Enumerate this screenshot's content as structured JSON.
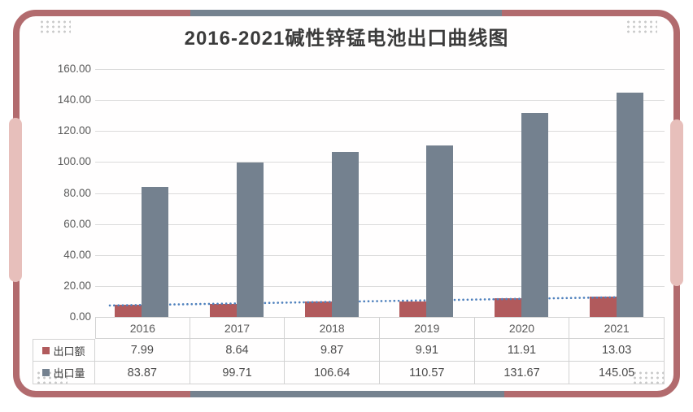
{
  "title": "2016-2021碱性锌锰电池出口曲线图",
  "chart_data": {
    "type": "bar",
    "categories": [
      "2016",
      "2017",
      "2018",
      "2019",
      "2020",
      "2021"
    ],
    "series": [
      {
        "name": "出口额",
        "color": "#b15a5c",
        "values": [
          7.99,
          8.64,
          9.87,
          9.91,
          11.91,
          13.03
        ]
      },
      {
        "name": "出口量",
        "color": "#74818f",
        "values": [
          83.87,
          99.71,
          106.64,
          110.57,
          131.67,
          145.05
        ]
      }
    ],
    "title": "2016-2021碱性锌锰电池出口曲线图",
    "xlabel": "",
    "ylabel": "",
    "ylim": [
      0,
      160
    ],
    "ytick_step": 20,
    "ytick_labels": [
      "160.00",
      "140.00",
      "120.00",
      "100.00",
      "80.00",
      "60.00",
      "40.00",
      "20.00",
      "0.00"
    ],
    "grid": true,
    "legend_position": "data-table-left",
    "trendline": {
      "of_series": "出口额",
      "style": "dotted",
      "color": "#4f81bd"
    }
  },
  "table": {
    "year_row": [
      "2016",
      "2017",
      "2018",
      "2019",
      "2020",
      "2021"
    ],
    "rows": [
      {
        "label": "出口额",
        "key_color": "#b15a5c",
        "values": [
          "7.99",
          "8.64",
          "9.87",
          "9.91",
          "11.91",
          "13.03"
        ]
      },
      {
        "label": "出口量",
        "key_color": "#74818f",
        "values": [
          "83.87",
          "99.71",
          "106.64",
          "110.57",
          "131.67",
          "145.05"
        ]
      }
    ]
  },
  "decor": {
    "frame_color": "#b26b6e",
    "accent_top_bottom_color": "#75828f",
    "accent_side_color": "#e7bfbb",
    "corner_dots_color": "#c9c9c9",
    "gridline_color": "#dbdbdb",
    "table_border_color": "#d2d2d2",
    "background_color": "#ffffff"
  }
}
